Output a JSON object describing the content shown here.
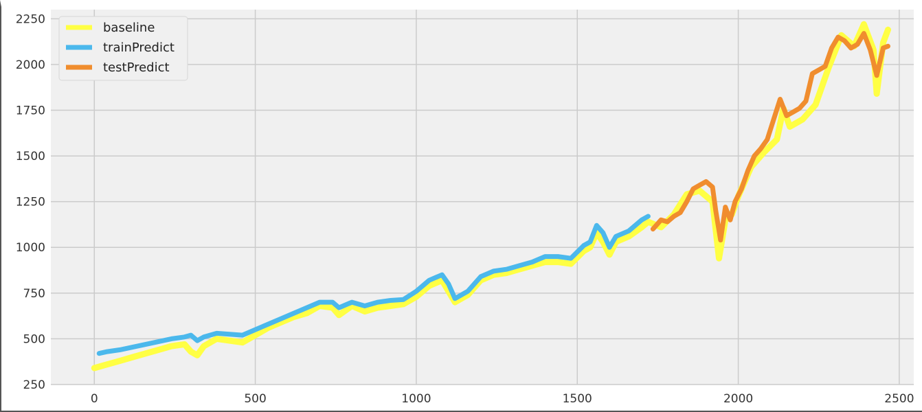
{
  "chart_data": {
    "type": "line",
    "title": "",
    "xlabel": "",
    "ylabel": "",
    "xlim": [
      -135,
      2545
    ],
    "ylim": [
      250,
      2300
    ],
    "x_ticks": [
      0,
      500,
      1000,
      1500,
      2000,
      2500
    ],
    "y_ticks": [
      250,
      500,
      750,
      1000,
      1250,
      1500,
      1750,
      2000,
      2250
    ],
    "x_tick_labels": [
      "0",
      "500",
      "1000",
      "1500",
      "2000",
      "2500"
    ],
    "y_tick_labels": [
      "250",
      "500",
      "750",
      "1000",
      "1250",
      "1500",
      "1750",
      "2000",
      "2250"
    ],
    "grid": true,
    "legend_position": "top-left",
    "background": "#f0f0f0",
    "series": [
      {
        "name": "baseline",
        "color": "#ffff44",
        "x": [
          0,
          40,
          80,
          120,
          160,
          200,
          240,
          280,
          300,
          320,
          340,
          380,
          420,
          460,
          500,
          540,
          580,
          620,
          660,
          700,
          740,
          760,
          800,
          840,
          880,
          920,
          960,
          1000,
          1040,
          1080,
          1100,
          1120,
          1160,
          1200,
          1240,
          1280,
          1320,
          1360,
          1400,
          1440,
          1480,
          1520,
          1540,
          1560,
          1580,
          1600,
          1620,
          1660,
          1700,
          1720,
          1760,
          1800,
          1840,
          1880,
          1920,
          1940,
          1960,
          1980,
          2000,
          2040,
          2080,
          2120,
          2140,
          2160,
          2200,
          2240,
          2280,
          2320,
          2360,
          2390,
          2420,
          2430,
          2450,
          2465
        ],
        "y": [
          340,
          360,
          380,
          400,
          420,
          440,
          460,
          470,
          430,
          410,
          460,
          500,
          490,
          480,
          520,
          560,
          590,
          620,
          640,
          680,
          670,
          630,
          680,
          650,
          670,
          680,
          690,
          730,
          790,
          820,
          760,
          700,
          740,
          820,
          850,
          860,
          880,
          900,
          920,
          920,
          910,
          980,
          1000,
          1080,
          1030,
          960,
          1030,
          1060,
          1110,
          1140,
          1110,
          1180,
          1290,
          1310,
          1250,
          940,
          1150,
          1180,
          1280,
          1440,
          1520,
          1590,
          1760,
          1660,
          1700,
          1780,
          1980,
          2160,
          2100,
          2220,
          2080,
          1840,
          2120,
          2190
        ]
      },
      {
        "name": "trainPredict",
        "color": "#4bb8ec",
        "x": [
          15,
          40,
          80,
          120,
          160,
          200,
          240,
          280,
          300,
          320,
          340,
          380,
          420,
          460,
          500,
          540,
          580,
          620,
          660,
          700,
          740,
          760,
          800,
          840,
          880,
          920,
          960,
          1000,
          1040,
          1080,
          1100,
          1120,
          1160,
          1200,
          1240,
          1280,
          1320,
          1360,
          1400,
          1440,
          1480,
          1520,
          1540,
          1560,
          1580,
          1600,
          1620,
          1660,
          1700,
          1720
        ],
        "y": [
          420,
          430,
          440,
          455,
          470,
          485,
          500,
          510,
          520,
          490,
          510,
          530,
          525,
          520,
          550,
          580,
          610,
          640,
          670,
          700,
          700,
          670,
          700,
          680,
          700,
          710,
          715,
          760,
          820,
          850,
          800,
          720,
          760,
          840,
          870,
          880,
          900,
          920,
          950,
          950,
          940,
          1010,
          1030,
          1120,
          1080,
          1000,
          1060,
          1090,
          1150,
          1170
        ]
      },
      {
        "name": "testPredict",
        "color": "#f08d2e",
        "x": [
          1735,
          1760,
          1780,
          1800,
          1820,
          1840,
          1860,
          1880,
          1900,
          1920,
          1930,
          1945,
          1960,
          1975,
          1990,
          2010,
          2030,
          2050,
          2070,
          2090,
          2110,
          2130,
          2150,
          2170,
          2190,
          2210,
          2230,
          2250,
          2270,
          2290,
          2310,
          2330,
          2350,
          2370,
          2390,
          2410,
          2430,
          2450,
          2465
        ],
        "y": [
          1100,
          1150,
          1140,
          1170,
          1190,
          1250,
          1320,
          1340,
          1360,
          1330,
          1200,
          1040,
          1220,
          1150,
          1250,
          1320,
          1420,
          1500,
          1540,
          1590,
          1700,
          1810,
          1720,
          1740,
          1760,
          1800,
          1950,
          1970,
          1990,
          2090,
          2150,
          2130,
          2090,
          2110,
          2170,
          2080,
          1940,
          2090,
          2100
        ]
      }
    ]
  }
}
